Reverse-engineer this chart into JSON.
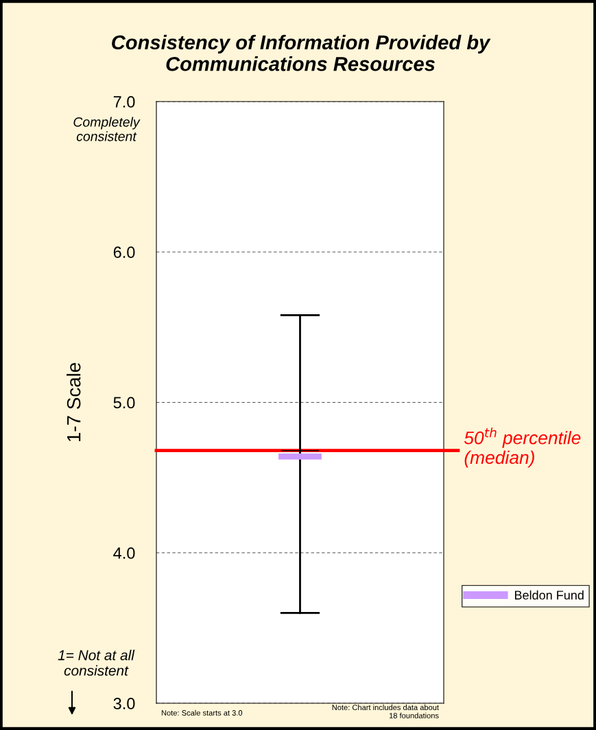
{
  "chart_data": {
    "type": "box",
    "title": "Consistency of Information Provided by Communications Resources",
    "ylabel": "1-7 Scale",
    "categories": [
      null
    ],
    "series": [
      {
        "color": "#000000",
        "boxes": [
          {
            "low": 3.6,
            "q1": 4.68,
            "median": 4.68,
            "q3": 4.68,
            "high": 5.58
          }
        ]
      },
      {
        "type": "bar",
        "name": "Beldon Fund",
        "color": "#cc99ff",
        "base": [
          4.62
        ],
        "values": [
          0.04
        ]
      }
    ],
    "ylim": [
      3,
      7
    ],
    "yticks": [
      {
        "value": 3,
        "label": "3.0"
      },
      {
        "value": 4,
        "label": "4.0"
      },
      {
        "value": 5,
        "label": "5.0"
      },
      {
        "value": 6,
        "label": "6.0"
      },
      {
        "value": 7,
        "label": "7.0"
      }
    ],
    "grid": "y",
    "legend": "right",
    "ref_lines": [
      {
        "axis": "y",
        "value": 4.68,
        "label": "50$^{th}$ percentile (median)",
        "color": "#ff0000"
      }
    ],
    "annotations": [
      "Completely consistent",
      "1= Not at all consistent",
      "Note: Scale starts at 3.0",
      "Note: Chart includes data about 18 foundations"
    ]
  }
}
